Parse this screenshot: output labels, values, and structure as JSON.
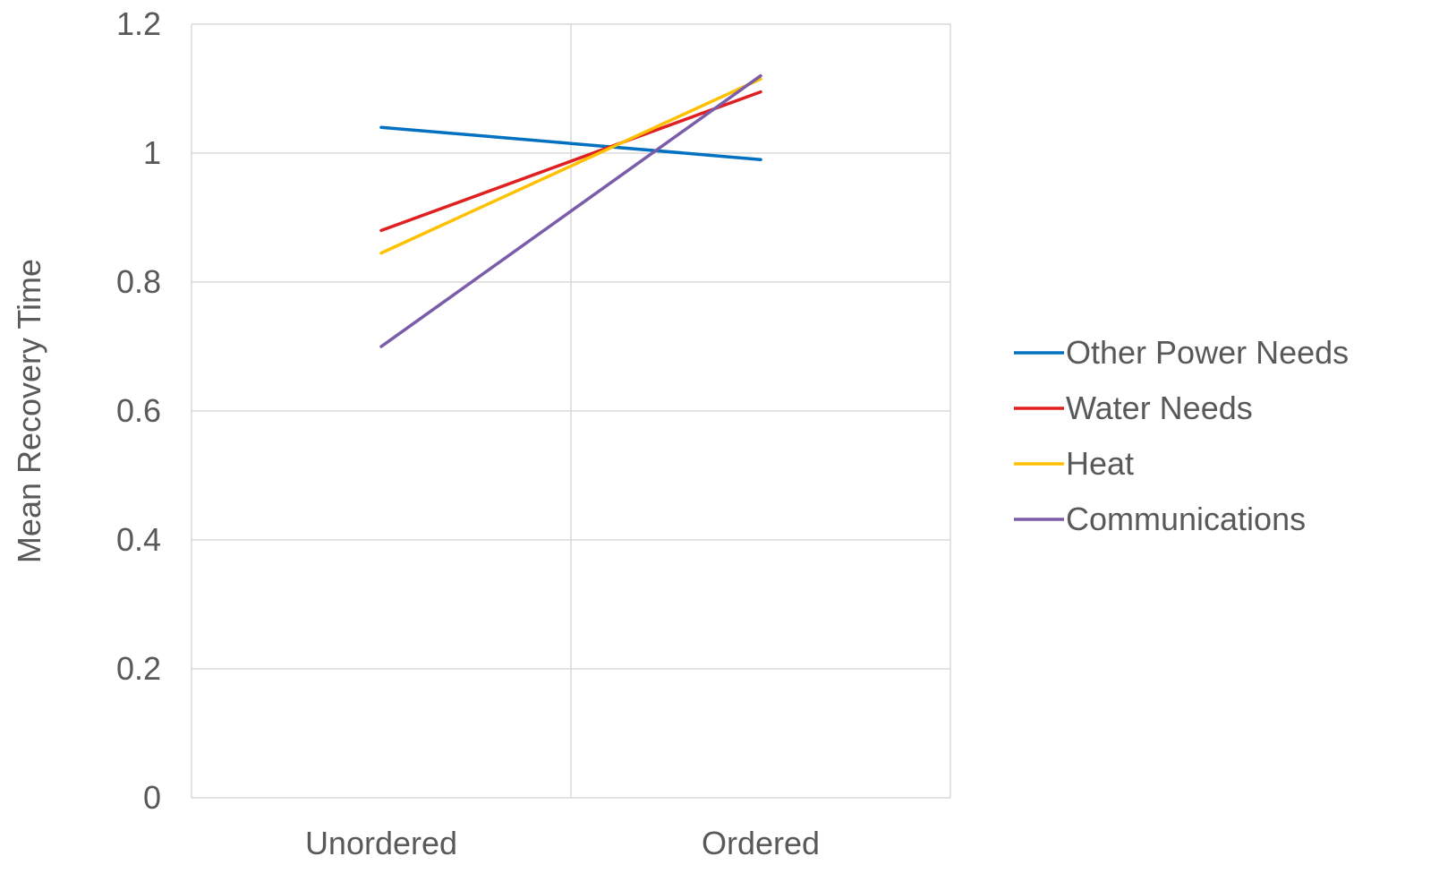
{
  "chart_data": {
    "type": "line",
    "title": "",
    "xlabel": "",
    "ylabel": "Mean Recovery Time",
    "categories": [
      "Unordered",
      "Ordered"
    ],
    "ylim": [
      0,
      1.2
    ],
    "yticks": [
      0,
      0.2,
      0.4,
      0.6,
      0.8,
      1,
      1.2
    ],
    "ytick_labels": [
      "0",
      "0.2",
      "0.4",
      "0.6",
      "0.8",
      "1",
      "1.2"
    ],
    "grid": true,
    "legend_position": "right",
    "series": [
      {
        "name": "Other Power Needs",
        "values": [
          1.04,
          0.99
        ],
        "color": "#0070C0"
      },
      {
        "name": "Water Needs",
        "values": [
          0.88,
          1.095
        ],
        "color": "#E02020"
      },
      {
        "name": "Heat",
        "values": [
          0.845,
          1.115
        ],
        "color": "#FFC000"
      },
      {
        "name": "Communications",
        "values": [
          0.7,
          1.12
        ],
        "color": "#7A5CA8"
      }
    ]
  },
  "style": {
    "grid_color": "#D9D9D9",
    "text_color": "#595959"
  }
}
